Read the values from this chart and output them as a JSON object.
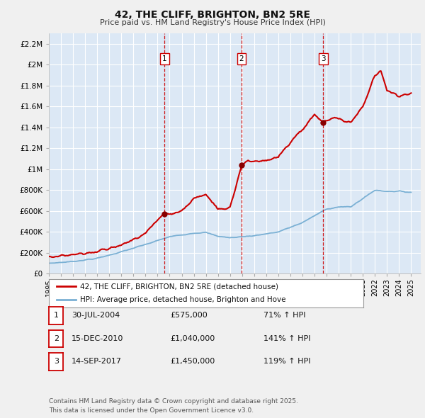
{
  "title": "42, THE CLIFF, BRIGHTON, BN2 5RE",
  "subtitle": "Price paid vs. HM Land Registry's House Price Index (HPI)",
  "fig_bg_color": "#f0f0f0",
  "plot_bg_color": "#dce8f5",
  "grid_color": "#ffffff",
  "red_line_color": "#cc0000",
  "blue_line_color": "#7ab0d4",
  "sale_marker_color": "#880000",
  "sale_dates": [
    2004.58,
    2010.96,
    2017.71
  ],
  "sale_prices": [
    575000,
    1040000,
    1450000
  ],
  "sale_labels": [
    "1",
    "2",
    "3"
  ],
  "sale_vline_color": "#cc0000",
  "legend_entries": [
    "42, THE CLIFF, BRIGHTON, BN2 5RE (detached house)",
    "HPI: Average price, detached house, Brighton and Hove"
  ],
  "table_rows": [
    [
      "1",
      "30-JUL-2004",
      "£575,000",
      "71% ↑ HPI"
    ],
    [
      "2",
      "15-DEC-2010",
      "£1,040,000",
      "141% ↑ HPI"
    ],
    [
      "3",
      "14-SEP-2017",
      "£1,450,000",
      "119% ↑ HPI"
    ]
  ],
  "footnote": "Contains HM Land Registry data © Crown copyright and database right 2025.\nThis data is licensed under the Open Government Licence v3.0.",
  "ylim": [
    0,
    2300000
  ],
  "xlim_start": 1995.0,
  "xlim_end": 2025.8,
  "yticks": [
    0,
    200000,
    400000,
    600000,
    800000,
    1000000,
    1200000,
    1400000,
    1600000,
    1800000,
    2000000,
    2200000
  ],
  "ytick_labels": [
    "£0",
    "£200K",
    "£400K",
    "£600K",
    "£800K",
    "£1M",
    "£1.2M",
    "£1.4M",
    "£1.6M",
    "£1.8M",
    "£2M",
    "£2.2M"
  ],
  "xticks": [
    1995,
    1996,
    1997,
    1998,
    1999,
    2000,
    2001,
    2002,
    2003,
    2004,
    2005,
    2006,
    2007,
    2008,
    2009,
    2010,
    2011,
    2012,
    2013,
    2014,
    2015,
    2016,
    2017,
    2018,
    2019,
    2020,
    2021,
    2022,
    2023,
    2024,
    2025
  ]
}
